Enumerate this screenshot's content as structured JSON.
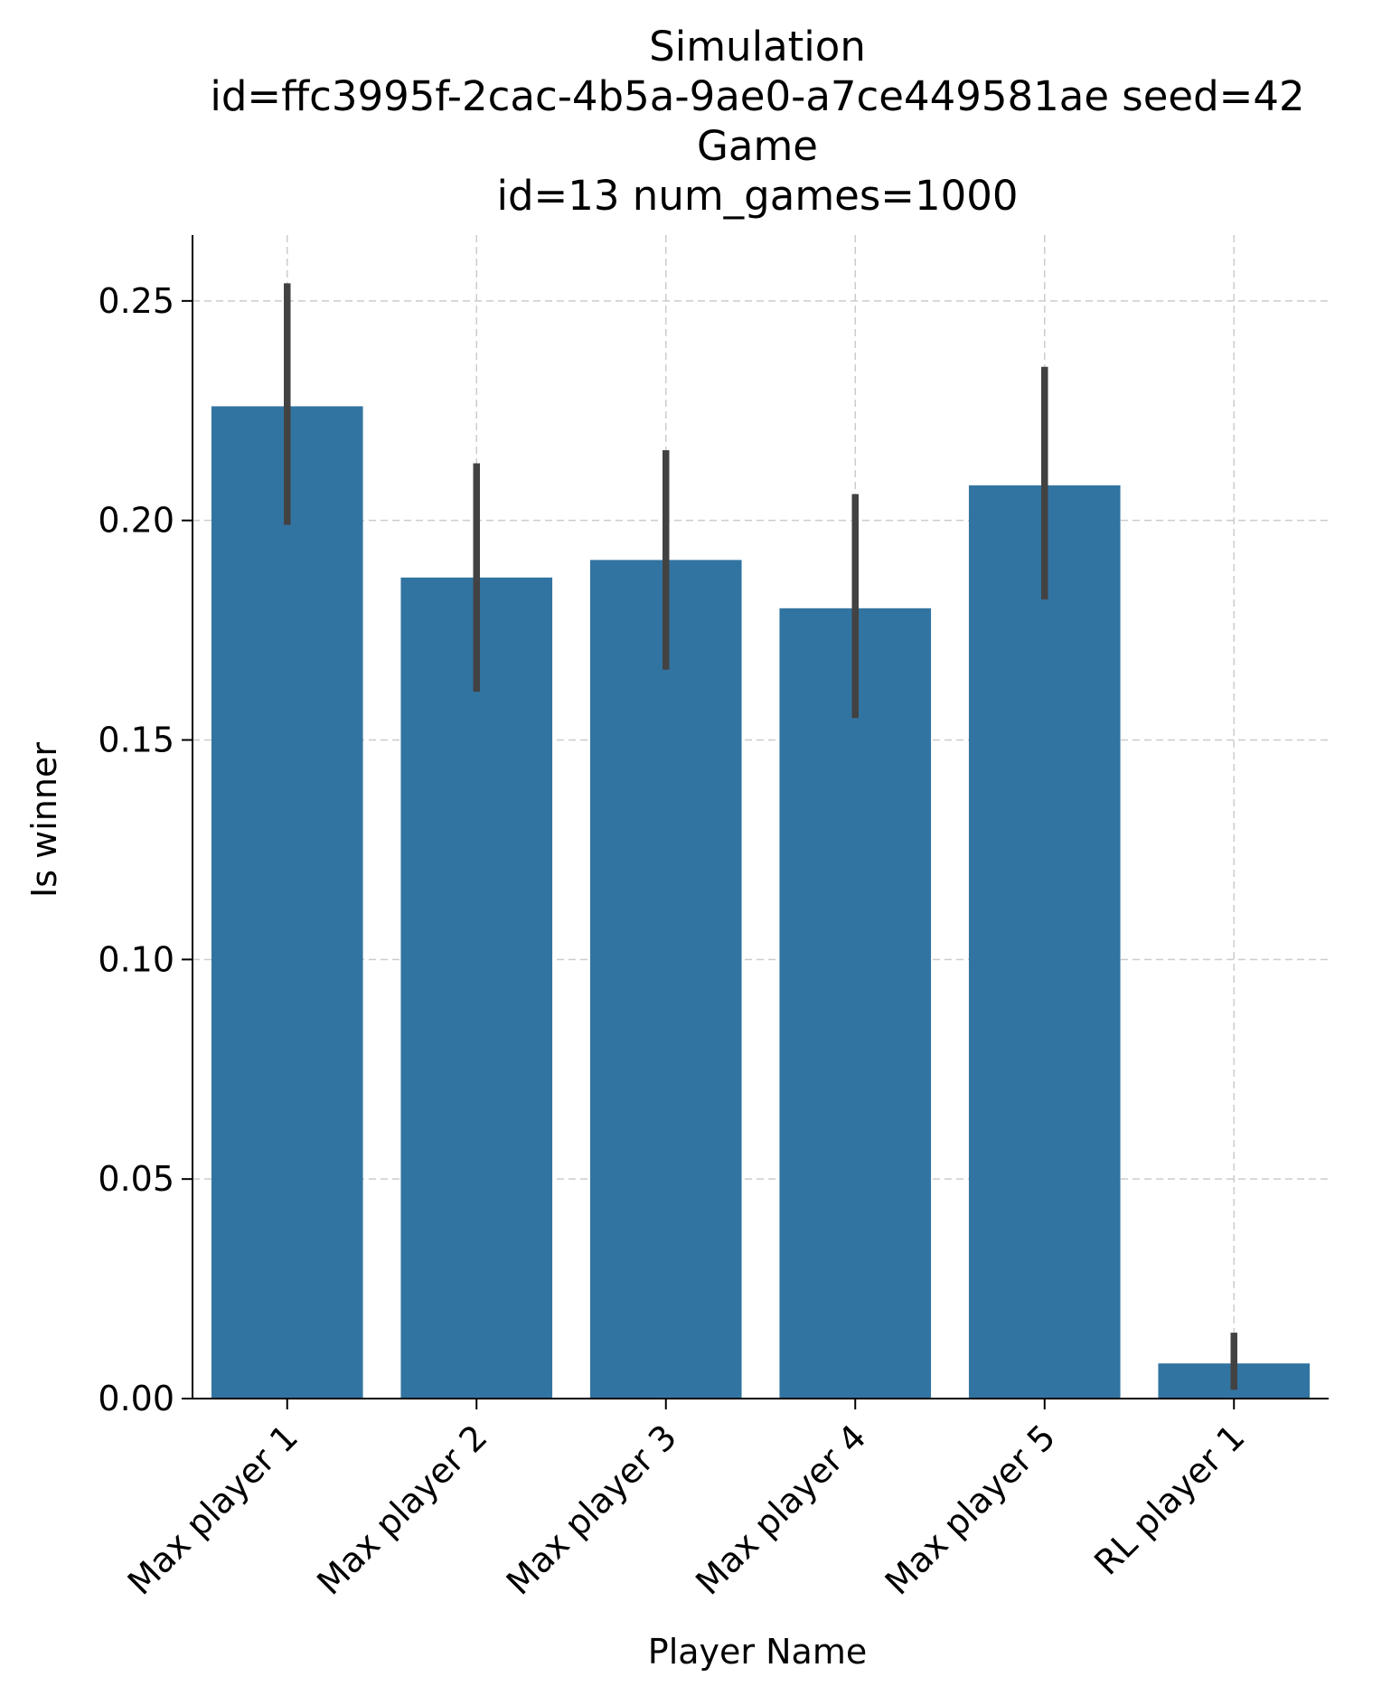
{
  "chart_data": {
    "type": "bar",
    "title_lines": [
      "Simulation",
      "id=ffc3995f-2cac-4b5a-9ae0-a7ce449581ae seed=42",
      "Game",
      "id=13 num_games=1000"
    ],
    "xlabel": "Player Name",
    "ylabel": "Is winner",
    "categories": [
      "Max player 1",
      "Max player 2",
      "Max player 3",
      "Max player 4",
      "Max player 5",
      "RL player 1"
    ],
    "values": [
      0.226,
      0.187,
      0.191,
      0.18,
      0.208,
      0.008
    ],
    "error_low": [
      0.199,
      0.161,
      0.166,
      0.155,
      0.182,
      0.002
    ],
    "error_high": [
      0.254,
      0.213,
      0.216,
      0.206,
      0.235,
      0.015
    ],
    "ylim": [
      0,
      0.265
    ],
    "yticks": [
      0.0,
      0.05,
      0.1,
      0.15,
      0.2,
      0.25
    ],
    "ytick_labels": [
      "0.00",
      "0.05",
      "0.10",
      "0.15",
      "0.20",
      "0.25"
    ],
    "grid": true,
    "bar_color": "#3274a1",
    "errorbar_color": "#424242",
    "grid_color": "#cccccc"
  }
}
